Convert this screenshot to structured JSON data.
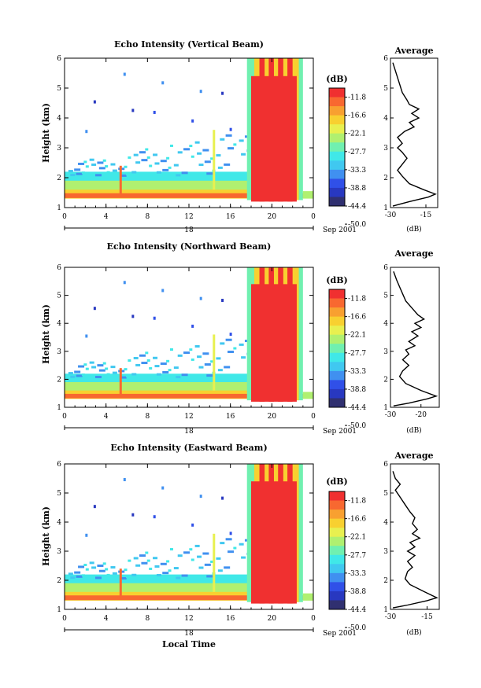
{
  "chart_data": [
    {
      "type": "heatmap",
      "title": "Echo Intensity (Vertical Beam)",
      "ylabel": "Height (km)",
      "ylim": [
        1,
        6
      ],
      "y_ticks": [
        "1",
        "2",
        "3",
        "4",
        "5",
        "6"
      ],
      "x_ticks": [
        "0",
        "4",
        "8",
        "12",
        "16",
        "20",
        "0"
      ],
      "xlim_hours": [
        0,
        24
      ],
      "date_day": "18",
      "date_suffix": "Sep 2001",
      "colorbar": {
        "unit": "(dB)",
        "labels": [
          "-11.8",
          "-16.6",
          "-22.1",
          "-27.7",
          "-33.3",
          "-38.8",
          "-44.4",
          "-50.0"
        ]
      },
      "profile": {
        "title": "Average",
        "xlabel": "(dB)",
        "x_ticks": [
          "-30",
          "-15"
        ],
        "xlim": [
          -30,
          -10
        ],
        "points": [
          [
            -29,
            1.05
          ],
          [
            -22,
            1.2
          ],
          [
            -14,
            1.35
          ],
          [
            -11,
            1.45
          ],
          [
            -16,
            1.6
          ],
          [
            -22,
            1.8
          ],
          [
            -25,
            2.05
          ],
          [
            -27,
            2.25
          ],
          [
            -25,
            2.45
          ],
          [
            -23,
            2.65
          ],
          [
            -25,
            2.85
          ],
          [
            -27,
            3.0
          ],
          [
            -25,
            3.15
          ],
          [
            -27,
            3.35
          ],
          [
            -24,
            3.55
          ],
          [
            -20,
            3.7
          ],
          [
            -22,
            3.85
          ],
          [
            -18,
            4.0
          ],
          [
            -21,
            4.15
          ],
          [
            -18,
            4.3
          ],
          [
            -22,
            4.45
          ],
          [
            -23,
            4.6
          ],
          [
            -25,
            4.85
          ],
          [
            -26,
            5.1
          ],
          [
            -27,
            5.35
          ],
          [
            -28,
            5.6
          ],
          [
            -29,
            5.85
          ]
        ]
      }
    },
    {
      "type": "heatmap",
      "title": "Echo Intensity (Northward Beam)",
      "ylabel": "Height (km)",
      "ylim": [
        1,
        6
      ],
      "y_ticks": [
        "1",
        "2",
        "3",
        "4",
        "5",
        "6"
      ],
      "x_ticks": [
        "0",
        "4",
        "8",
        "12",
        "16",
        "20",
        "0"
      ],
      "xlim_hours": [
        0,
        24
      ],
      "date_day": "18",
      "date_suffix": "Sep 2001",
      "colorbar": {
        "unit": "(dB)",
        "labels": [
          "-11.8",
          "-16.6",
          "-22.1",
          "-27.7",
          "-33.3",
          "-38.8",
          "-44.4",
          "-50.0"
        ]
      },
      "profile": {
        "title": "Average",
        "xlabel": "(dB)",
        "x_ticks": [
          "-30",
          "-20"
        ],
        "xlim": [
          -30,
          -14
        ],
        "points": [
          [
            -29,
            1.05
          ],
          [
            -24,
            1.15
          ],
          [
            -18,
            1.3
          ],
          [
            -15,
            1.4
          ],
          [
            -20,
            1.6
          ],
          [
            -25,
            1.85
          ],
          [
            -27,
            2.1
          ],
          [
            -26,
            2.3
          ],
          [
            -24,
            2.5
          ],
          [
            -26,
            2.7
          ],
          [
            -24,
            2.9
          ],
          [
            -25,
            3.05
          ],
          [
            -22,
            3.2
          ],
          [
            -24,
            3.35
          ],
          [
            -21,
            3.55
          ],
          [
            -23,
            3.7
          ],
          [
            -20,
            3.85
          ],
          [
            -22,
            4.0
          ],
          [
            -19,
            4.15
          ],
          [
            -21,
            4.3
          ],
          [
            -23,
            4.55
          ],
          [
            -25,
            4.8
          ],
          [
            -26,
            5.05
          ],
          [
            -27,
            5.3
          ],
          [
            -28,
            5.55
          ],
          [
            -29,
            5.85
          ]
        ]
      }
    },
    {
      "type": "heatmap",
      "title": "Echo Intensity (Eastward Beam)",
      "ylabel": "Height (km)",
      "ylim": [
        1,
        6
      ],
      "y_ticks": [
        "1",
        "2",
        "3",
        "4",
        "5",
        "6"
      ],
      "x_ticks": [
        "0",
        "4",
        "8",
        "12",
        "16",
        "20",
        "0"
      ],
      "xlim_hours": [
        0,
        24
      ],
      "date_day": "18",
      "date_suffix": "Sep 2001",
      "xlabel": "Local Time",
      "colorbar": {
        "unit": "(dB)",
        "labels": [
          "-11.8",
          "-16.6",
          "-22.1",
          "-27.7",
          "-33.3",
          "-38.8",
          "-44.4",
          "-50.0"
        ]
      },
      "profile": {
        "title": "Average",
        "xlabel": "(dB)",
        "x_ticks": [
          "-30",
          "-15"
        ],
        "xlim": [
          -30,
          -10
        ],
        "points": [
          [
            -29,
            1.05
          ],
          [
            -23,
            1.15
          ],
          [
            -15,
            1.3
          ],
          [
            -11,
            1.4
          ],
          [
            -16,
            1.6
          ],
          [
            -22,
            1.85
          ],
          [
            -24,
            2.05
          ],
          [
            -23,
            2.3
          ],
          [
            -21,
            2.45
          ],
          [
            -23,
            2.65
          ],
          [
            -20,
            2.85
          ],
          [
            -23,
            3.0
          ],
          [
            -20,
            3.15
          ],
          [
            -22,
            3.3
          ],
          [
            -18,
            3.45
          ],
          [
            -21,
            3.6
          ],
          [
            -19,
            3.75
          ],
          [
            -21,
            3.95
          ],
          [
            -20,
            4.15
          ],
          [
            -22,
            4.35
          ],
          [
            -24,
            4.6
          ],
          [
            -26,
            4.85
          ],
          [
            -28,
            5.1
          ],
          [
            -26,
            5.3
          ],
          [
            -28,
            5.5
          ],
          [
            -29,
            5.75
          ]
        ]
      }
    }
  ],
  "colors": [
    "#f03030",
    "#f86830",
    "#f8a030",
    "#f8d030",
    "#e8f050",
    "#b0f070",
    "#70f0b0",
    "#40e8e8",
    "#40c8f0",
    "#4090f0",
    "#3050e8",
    "#2838c0",
    "#303070"
  ]
}
